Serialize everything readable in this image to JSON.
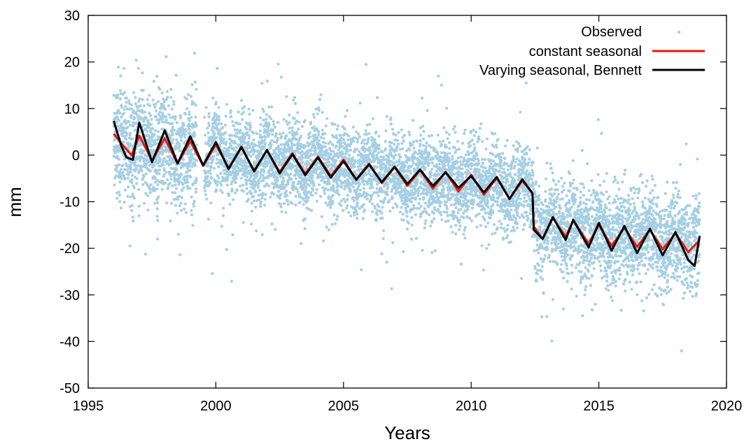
{
  "chart_data": {
    "type": "line",
    "title": "",
    "xlabel": "Years",
    "ylabel": "mm",
    "xlim": [
      1995,
      2020
    ],
    "ylim": [
      -50,
      30
    ],
    "x_ticks": [
      1995,
      2000,
      2005,
      2010,
      2015,
      2020
    ],
    "y_ticks": [
      -50,
      -40,
      -30,
      -20,
      -10,
      0,
      10,
      20,
      30
    ],
    "grid": false,
    "legend_position": "top-right",
    "series": [
      {
        "name": "Observed",
        "kind": "scatter",
        "color": "#a6cfe3",
        "description": "dense daily observations scattered around the seasonal fit, spread roughly ±8 mm",
        "trend_breakpoints": [
          [
            1996.0,
            4
          ],
          [
            1996.5,
            1.5
          ],
          [
            1999.2,
            0
          ],
          [
            2003.0,
            -2
          ],
          [
            2007.0,
            -4.5
          ],
          [
            2012.4,
            -7.5
          ],
          [
            2012.45,
            -16
          ],
          [
            2016.0,
            -17
          ],
          [
            2018.9,
            -20
          ]
        ]
      },
      {
        "name": "constant seasonal",
        "kind": "line",
        "color": "#e8170f",
        "points": [
          [
            1996.0,
            4.6
          ],
          [
            1996.3,
            2.5
          ],
          [
            1996.7,
            0.0
          ],
          [
            1997.0,
            4.2
          ],
          [
            1997.5,
            -1.2
          ],
          [
            1998.0,
            3.6
          ],
          [
            1998.5,
            -1.8
          ],
          [
            1999.0,
            3.0
          ],
          [
            1999.5,
            -2.3
          ],
          [
            2000.0,
            2.3
          ],
          [
            2000.5,
            -2.8
          ],
          [
            2001.0,
            1.6
          ],
          [
            2001.5,
            -3.3
          ],
          [
            2002.0,
            1.0
          ],
          [
            2002.5,
            -3.6
          ],
          [
            2003.0,
            0.4
          ],
          [
            2003.5,
            -4.0
          ],
          [
            2004.0,
            -0.3
          ],
          [
            2004.5,
            -4.5
          ],
          [
            2005.0,
            -1.0
          ],
          [
            2005.5,
            -5.2
          ],
          [
            2006.0,
            -1.8
          ],
          [
            2006.5,
            -6.0
          ],
          [
            2007.0,
            -2.6
          ],
          [
            2007.5,
            -6.6
          ],
          [
            2008.0,
            -3.2
          ],
          [
            2008.5,
            -7.2
          ],
          [
            2009.0,
            -3.6
          ],
          [
            2009.5,
            -7.8
          ],
          [
            2010.0,
            -4.2
          ],
          [
            2010.5,
            -8.5
          ],
          [
            2011.0,
            -4.9
          ],
          [
            2011.5,
            -9.4
          ],
          [
            2012.0,
            -5.5
          ],
          [
            2012.4,
            -8.2
          ],
          [
            2012.45,
            -15.3
          ],
          [
            2012.8,
            -18.0
          ],
          [
            2013.2,
            -13.5
          ],
          [
            2013.7,
            -17.5
          ],
          [
            2014.0,
            -14.0
          ],
          [
            2014.6,
            -19.0
          ],
          [
            2015.0,
            -15.0
          ],
          [
            2015.5,
            -19.5
          ],
          [
            2016.0,
            -15.6
          ],
          [
            2016.5,
            -19.7
          ],
          [
            2017.0,
            -16.0
          ],
          [
            2017.5,
            -20.2
          ],
          [
            2018.0,
            -16.8
          ],
          [
            2018.5,
            -20.8
          ],
          [
            2018.9,
            -18.5
          ]
        ]
      },
      {
        "name": "Varying seasonal, Bennett",
        "kind": "line",
        "color": "#000000",
        "points": [
          [
            1996.0,
            7.3
          ],
          [
            1996.3,
            2.0
          ],
          [
            1996.5,
            -0.5
          ],
          [
            1996.75,
            -1.0
          ],
          [
            1997.0,
            7.0
          ],
          [
            1997.5,
            -1.5
          ],
          [
            1998.0,
            5.3
          ],
          [
            1998.5,
            -1.8
          ],
          [
            1999.0,
            4.0
          ],
          [
            1999.5,
            -2.2
          ],
          [
            2000.0,
            2.8
          ],
          [
            2000.5,
            -3.0
          ],
          [
            2001.0,
            1.8
          ],
          [
            2001.5,
            -3.5
          ],
          [
            2002.0,
            1.1
          ],
          [
            2002.5,
            -3.9
          ],
          [
            2003.0,
            0.2
          ],
          [
            2003.5,
            -4.3
          ],
          [
            2004.0,
            -0.5
          ],
          [
            2004.5,
            -4.8
          ],
          [
            2005.0,
            -1.3
          ],
          [
            2005.5,
            -5.3
          ],
          [
            2006.0,
            -2.0
          ],
          [
            2006.5,
            -5.8
          ],
          [
            2007.0,
            -2.5
          ],
          [
            2007.5,
            -6.2
          ],
          [
            2008.0,
            -3.1
          ],
          [
            2008.5,
            -6.6
          ],
          [
            2009.0,
            -3.7
          ],
          [
            2009.5,
            -7.0
          ],
          [
            2010.0,
            -4.5
          ],
          [
            2010.5,
            -8.0
          ],
          [
            2011.0,
            -4.7
          ],
          [
            2011.5,
            -9.4
          ],
          [
            2012.0,
            -5.2
          ],
          [
            2012.4,
            -8.2
          ],
          [
            2012.45,
            -16.0
          ],
          [
            2012.8,
            -18.0
          ],
          [
            2013.2,
            -13.3
          ],
          [
            2013.7,
            -18.2
          ],
          [
            2014.0,
            -13.9
          ],
          [
            2014.6,
            -19.8
          ],
          [
            2015.0,
            -14.5
          ],
          [
            2015.5,
            -20.5
          ],
          [
            2016.0,
            -15.2
          ],
          [
            2016.5,
            -21.0
          ],
          [
            2017.0,
            -15.8
          ],
          [
            2017.5,
            -21.5
          ],
          [
            2018.0,
            -16.5
          ],
          [
            2018.5,
            -22.5
          ],
          [
            2018.75,
            -23.8
          ],
          [
            2018.95,
            -17.4
          ]
        ]
      }
    ]
  }
}
